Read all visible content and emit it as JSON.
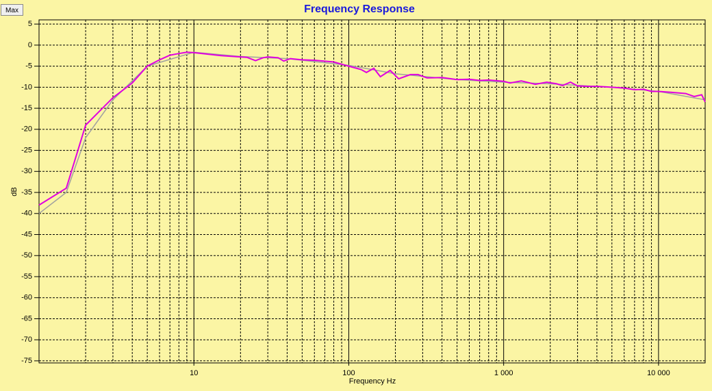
{
  "button": {
    "label": "Max"
  },
  "chart_data": {
    "type": "line",
    "title": "Frequency Response",
    "xlabel": "Frequency Hz",
    "ylabel": "dB",
    "xscale": "log",
    "grid": true,
    "xlim": [
      1,
      20000
    ],
    "ylim": [
      -75.5,
      6
    ],
    "xticks": [
      10,
      100,
      {
        "value": 1000,
        "label": "1 000"
      },
      {
        "value": 10000,
        "label": "10 000"
      }
    ],
    "xminorticks": [
      2,
      3,
      4,
      5,
      6,
      7,
      8,
      9,
      20,
      30,
      40,
      50,
      60,
      70,
      80,
      90,
      200,
      300,
      400,
      500,
      600,
      700,
      800,
      900,
      2000,
      3000,
      4000,
      5000,
      6000,
      7000,
      8000,
      9000
    ],
    "yticks": [
      5,
      0,
      -5,
      -10,
      -15,
      -20,
      -25,
      -30,
      -35,
      -40,
      -45,
      -50,
      -55,
      -60,
      -65,
      -70,
      -75
    ],
    "series": [
      {
        "color": "#a0a0a0",
        "x": [
          1,
          1.5,
          2,
          3,
          5,
          10,
          20,
          40,
          100,
          200,
          500,
          1000,
          2000,
          5000,
          10000,
          20000
        ],
        "values": [
          -40,
          -35,
          -22,
          -13,
          -5,
          -1.7,
          -2.7,
          -3.2,
          -4.8,
          -6.8,
          -8.2,
          -8.8,
          -9.2,
          -10,
          -11,
          -13
        ]
      },
      {
        "color": "#e000e0",
        "x": [
          1,
          1.5,
          2,
          3,
          4,
          5,
          6,
          7,
          8,
          9,
          10,
          15,
          20,
          22,
          25,
          28,
          30,
          35,
          38,
          42,
          50,
          60,
          80,
          100,
          120,
          130,
          145,
          160,
          185,
          210,
          250,
          280,
          320,
          400,
          500,
          600,
          700,
          800,
          1000,
          1100,
          1300,
          1600,
          1900,
          2200,
          2400,
          2700,
          3000,
          3500,
          4000,
          5000,
          6000,
          7000,
          8000,
          9000,
          10000,
          12000,
          15000,
          17000,
          19000,
          20000
        ],
        "values": [
          -38,
          -34,
          -19,
          -12.5,
          -9,
          -5,
          -3.5,
          -2.4,
          -2,
          -1.7,
          -1.8,
          -2.5,
          -2.8,
          -2.9,
          -3.7,
          -3,
          -2.8,
          -3,
          -3.8,
          -3.2,
          -3.5,
          -3.6,
          -4,
          -5,
          -5.8,
          -6.5,
          -5.5,
          -7.5,
          -6,
          -8,
          -7,
          -7,
          -7.8,
          -7.7,
          -8.2,
          -8.1,
          -8.4,
          -8.3,
          -8.6,
          -9,
          -8.5,
          -9.3,
          -8.8,
          -9.2,
          -9.6,
          -8.8,
          -9.7,
          -9.8,
          -9.8,
          -10,
          -10.2,
          -10.6,
          -10.5,
          -11,
          -11,
          -11.2,
          -11.5,
          -12.2,
          -11.8,
          -13.5
        ]
      }
    ]
  }
}
